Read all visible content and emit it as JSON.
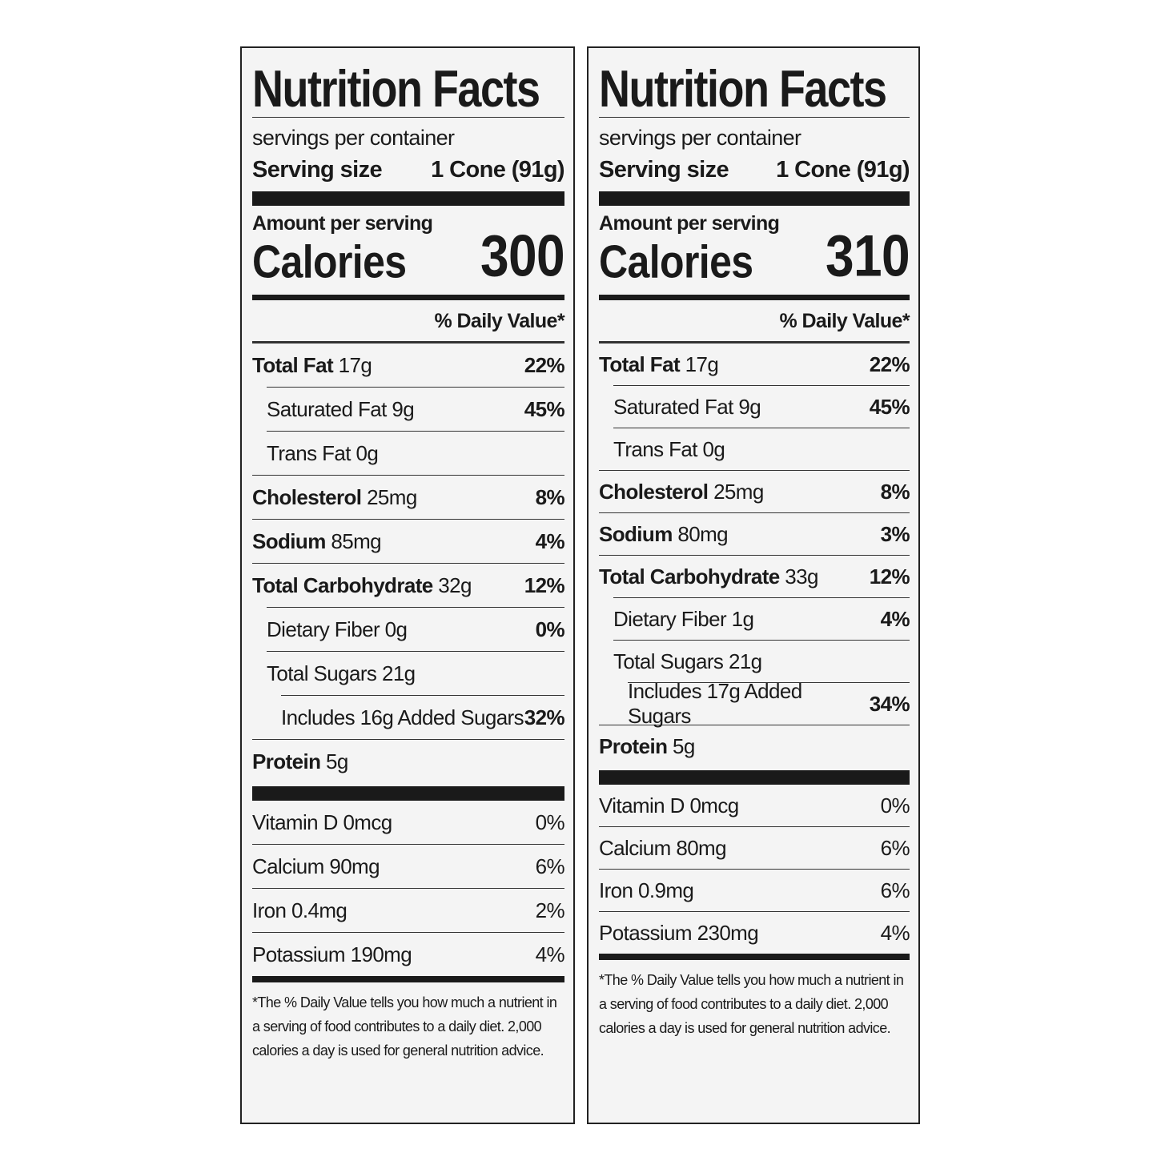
{
  "labels": [
    {
      "title": "Nutrition Facts",
      "servings": "servings per container",
      "serving_size_label": "Serving size",
      "serving_size_value": "1 Cone (91g)",
      "amount_per_serving": "Amount per serving",
      "calories_label": "Calories",
      "calories": 300,
      "daily_value_header": "% Daily Value*",
      "nutrients": [
        {
          "name": "Total Fat",
          "amount": "17g",
          "dv": "22%",
          "level": 0
        },
        {
          "name": "Saturated Fat",
          "amount": "9g",
          "dv": "45%",
          "level": 1
        },
        {
          "name": "Trans Fat",
          "amount": "0g",
          "level": 1
        },
        {
          "name": "Cholesterol",
          "amount": "25mg",
          "dv": "8%",
          "level": 0
        },
        {
          "name": "Sodium",
          "amount": "85mg",
          "dv": "4%",
          "level": 0
        },
        {
          "name": "Total Carbohydrate",
          "amount": "32g",
          "dv": "12%",
          "level": 0
        },
        {
          "name": "Dietary Fiber",
          "amount": "0g",
          "dv": "0%",
          "level": 1
        },
        {
          "name": "Total Sugars",
          "amount": "21g",
          "level": 1
        },
        {
          "name": "Includes 16g Added Sugars",
          "dv": "32%",
          "level": 2
        },
        {
          "name": "Protein",
          "amount": "5g",
          "level": 0
        }
      ],
      "vitamins": [
        {
          "name": "Vitamin D 0mcg",
          "dv": "0%"
        },
        {
          "name": "Calcium 90mg",
          "dv": "6%"
        },
        {
          "name": "Iron 0.4mg",
          "dv": "2%"
        },
        {
          "name": "Potassium 190mg",
          "dv": "4%"
        }
      ],
      "footnote": "*The % Daily Value tells you how much a nutrient in a serving of food contributes to a daily diet. 2,000 calories a day is used for general nutrition advice."
    },
    {
      "title": "Nutrition Facts",
      "servings": "servings per container",
      "serving_size_label": "Serving size",
      "serving_size_value": "1 Cone (91g)",
      "amount_per_serving": "Amount per serving",
      "calories_label": "Calories",
      "calories": 310,
      "daily_value_header": "% Daily Value*",
      "nutrients": [
        {
          "name": "Total Fat",
          "amount": "17g",
          "dv": "22%",
          "level": 0
        },
        {
          "name": "Saturated Fat",
          "amount": "9g",
          "dv": "45%",
          "level": 1
        },
        {
          "name": "Trans Fat",
          "amount": "0g",
          "level": 1
        },
        {
          "name": "Cholesterol",
          "amount": "25mg",
          "dv": "8%",
          "level": 0
        },
        {
          "name": "Sodium",
          "amount": "80mg",
          "dv": "3%",
          "level": 0
        },
        {
          "name": "Total Carbohydrate",
          "amount": "33g",
          "dv": "12%",
          "level": 0
        },
        {
          "name": "Dietary Fiber",
          "amount": "1g",
          "dv": "4%",
          "level": 1
        },
        {
          "name": "Total Sugars",
          "amount": "21g",
          "level": 1
        },
        {
          "name": "Includes 17g Added Sugars",
          "dv": "34%",
          "level": 2
        },
        {
          "name": "Protein",
          "amount": "5g",
          "level": 0
        }
      ],
      "vitamins": [
        {
          "name": "Vitamin D 0mcg",
          "dv": "0%"
        },
        {
          "name": "Calcium 80mg",
          "dv": "6%"
        },
        {
          "name": "Iron 0.9mg",
          "dv": "6%"
        },
        {
          "name": "Potassium 230mg",
          "dv": "4%"
        }
      ],
      "footnote": "*The % Daily Value tells you how much a nutrient in a serving of food contributes to a daily diet. 2,000 calories a day is used for general nutrition advice."
    }
  ]
}
